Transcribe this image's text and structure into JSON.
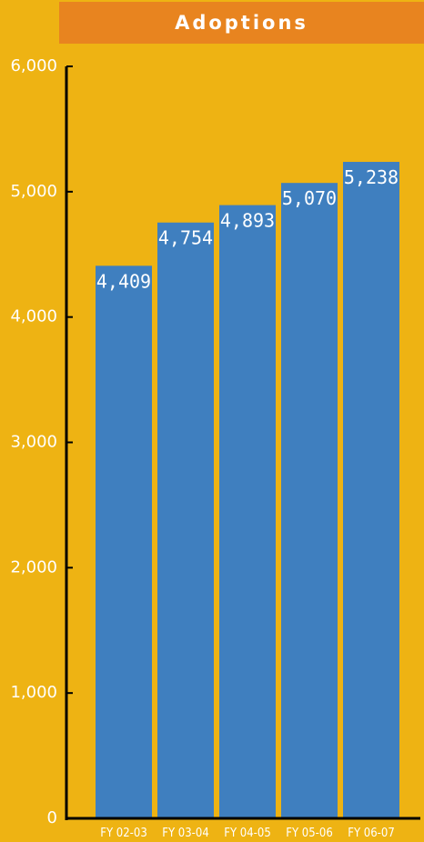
{
  "chart_data": {
    "type": "bar",
    "title": "Adoptions",
    "categories": [
      "FY 02-03",
      "FY 03-04",
      "FY 04-05",
      "FY 05-06",
      "FY 06-07"
    ],
    "values": [
      4409,
      4754,
      4893,
      5070,
      5238
    ],
    "data_labels": [
      "4,409",
      "4,754",
      "4,893",
      "5,070",
      "5,238"
    ],
    "yticks": [
      0,
      1000,
      2000,
      3000,
      4000,
      5000,
      6000
    ],
    "ytick_labels": [
      "0",
      "1,000",
      "2,000",
      "3,000",
      "4,000",
      "5,000",
      "6,000"
    ],
    "ylim": [
      0,
      6000
    ],
    "grid": false,
    "legend": "none",
    "xlabel": "",
    "ylabel": ""
  },
  "colors": {
    "background": "#EEB313",
    "title_bar": "#E8841F",
    "bar": "#3F7FBF",
    "axis": "#000000",
    "text": "#FFFFFF"
  }
}
